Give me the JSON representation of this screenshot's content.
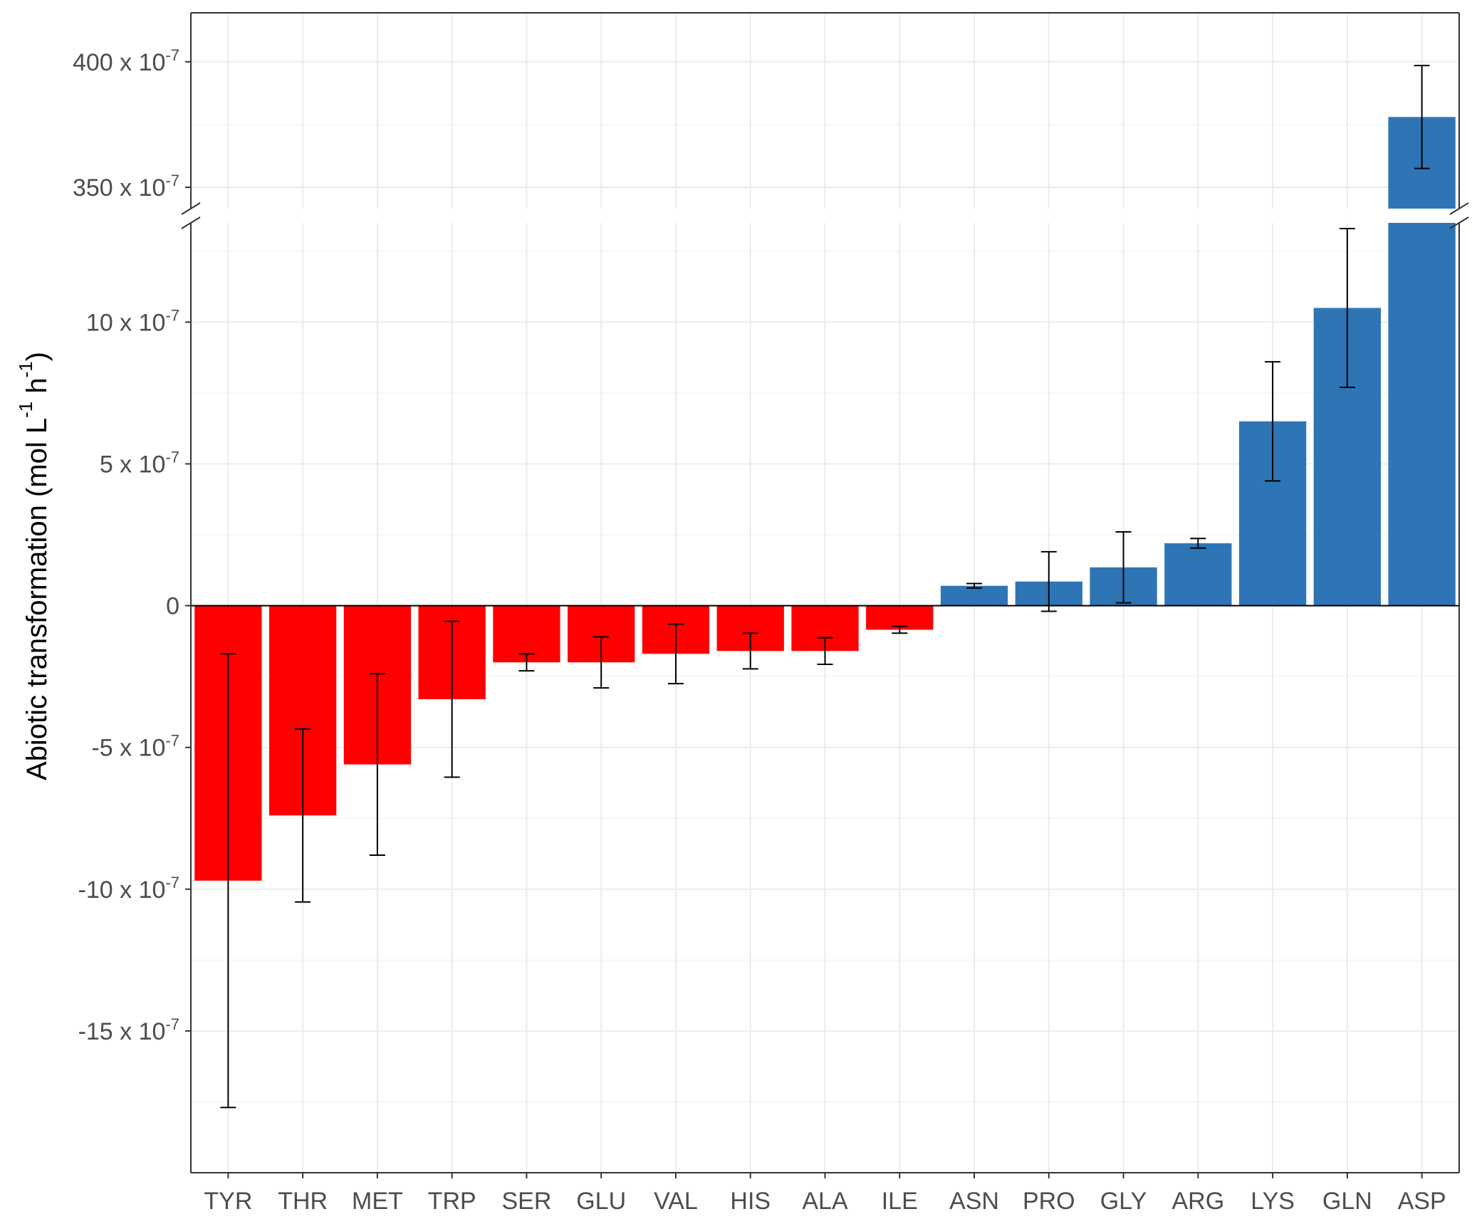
{
  "chart_data": {
    "type": "bar",
    "ylabel": {
      "prefix": "Abiotic transformation (mol L",
      "exp1": "-1",
      "middle": " h",
      "exp2": "-1",
      "suffix": ")"
    },
    "categories": [
      "TYR",
      "THR",
      "MET",
      "TRP",
      "SER",
      "GLU",
      "VAL",
      "HIS",
      "ALA",
      "ILE",
      "ASN",
      "PRO",
      "GLY",
      "ARG",
      "LYS",
      "GLN",
      "ASP"
    ],
    "unit_exponent": "-7",
    "values_x1e7": [
      -9.7,
      -7.4,
      -5.6,
      -3.3,
      -2.0,
      -2.0,
      -1.7,
      -1.6,
      -1.6,
      -0.85,
      0.7,
      0.85,
      1.35,
      2.2,
      6.5,
      10.5,
      378
    ],
    "error_x1e7": [
      8.0,
      3.05,
      3.2,
      2.75,
      0.3,
      0.9,
      1.05,
      0.63,
      0.47,
      0.12,
      0.08,
      1.05,
      1.25,
      0.17,
      2.1,
      2.8,
      20.5
    ],
    "negative_color": "#ff0000",
    "positive_color": "#2e75b6",
    "y_broken_axis": true,
    "ylim_lower_x1e7": [
      -20,
      13.5
    ],
    "ylim_upper_x1e7": [
      341.5,
      419.5
    ],
    "lower_ticks": [
      {
        "value": 10,
        "mantissa": "10 x 10",
        "exp": "-7"
      },
      {
        "value": 5,
        "mantissa": "5 x 10",
        "exp": "-7"
      },
      {
        "value": 0,
        "mantissa": "0",
        "exp": ""
      },
      {
        "value": -5,
        "mantissa": "-5 x 10",
        "exp": "-7"
      },
      {
        "value": -10,
        "mantissa": "-10 x 10",
        "exp": "-7"
      },
      {
        "value": -15,
        "mantissa": "-15 x 10",
        "exp": "-7"
      }
    ],
    "upper_ticks": [
      {
        "value": 400,
        "mantissa": "400 x 10",
        "exp": "-7"
      },
      {
        "value": 350,
        "mantissa": "350 x 10",
        "exp": "-7"
      }
    ],
    "grid": true,
    "theme": "bw"
  }
}
